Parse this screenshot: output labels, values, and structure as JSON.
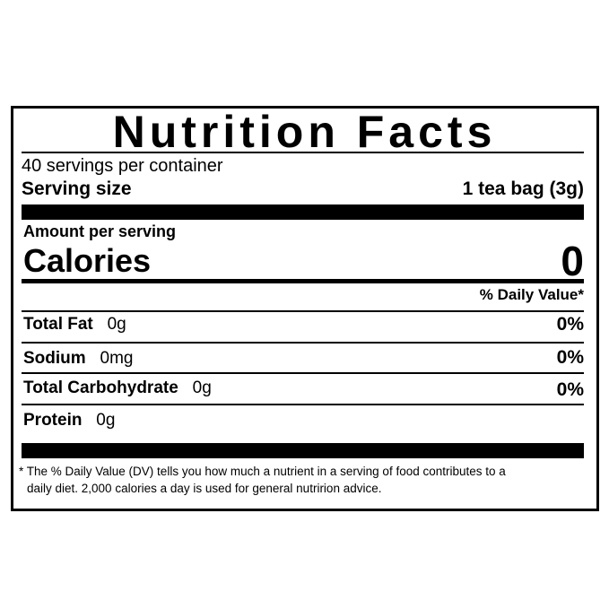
{
  "title": "Nutrition Facts",
  "servings_per_container": "40 servings per container",
  "serving_size": {
    "label": "Serving size",
    "value": "1 tea bag (3g)"
  },
  "amount_per_serving": "Amount per serving",
  "calories": {
    "label": "Calories",
    "value": "0"
  },
  "daily_value_header": "% Daily Value*",
  "nutrients": [
    {
      "name": "Total Fat",
      "amount": "0g",
      "dv": "0%"
    },
    {
      "name": "Sodium",
      "amount": "0mg",
      "dv": "0%"
    },
    {
      "name": "Total Carbohydrate",
      "amount": "0g",
      "dv": "0%"
    },
    {
      "name": "Protein",
      "amount": "0g",
      "dv": ""
    }
  ],
  "footnote": {
    "line1": "* The % Daily Value (DV) tells you how much a nutrient in a serving of food contributes to a",
    "line2": "daily diet. 2,000 calories a day is used for general nutririon advice."
  }
}
